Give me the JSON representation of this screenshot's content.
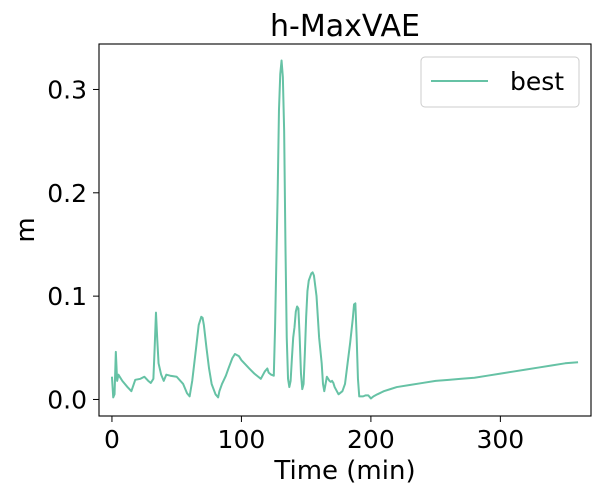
{
  "chart_data": {
    "type": "line",
    "title": "h-MaxVAE",
    "xlabel": "Time (min)",
    "ylabel": "m",
    "xlim": [
      -10,
      370
    ],
    "ylim": [
      -0.016,
      0.344
    ],
    "x_ticks": [
      0,
      100,
      200,
      300
    ],
    "x_tick_labels": [
      "0",
      "100",
      "200",
      "300"
    ],
    "y_ticks": [
      0.0,
      0.1,
      0.2,
      0.3
    ],
    "y_tick_labels": [
      "0.0",
      "0.1",
      "0.2",
      "0.3"
    ],
    "grid": false,
    "legend": "top-right",
    "series": [
      {
        "name": "best",
        "color": "#66c2a5",
        "x": [
          0,
          1,
          2,
          3,
          4,
          5,
          8,
          12,
          15,
          18,
          22,
          25,
          28,
          30,
          32,
          33,
          34,
          35,
          36,
          38,
          40,
          42,
          45,
          50,
          55,
          58,
          60,
          62,
          65,
          67,
          69,
          70,
          71,
          73,
          75,
          77,
          80,
          82,
          83,
          85,
          88,
          90,
          93,
          95,
          98,
          100,
          103,
          106,
          110,
          113,
          115,
          118,
          120,
          121,
          123,
          125,
          126,
          128,
          129,
          130,
          131,
          132,
          133,
          134,
          135,
          136,
          137,
          138,
          139,
          140,
          141,
          142,
          143,
          144,
          145,
          146,
          147,
          148,
          149,
          150,
          151,
          152,
          154,
          155,
          156,
          158,
          160,
          162,
          163,
          164,
          165,
          166,
          167,
          168,
          169,
          170,
          171,
          172,
          175,
          178,
          180,
          182,
          184,
          186,
          187,
          188,
          189,
          190,
          191,
          192,
          194,
          196,
          198,
          200,
          202,
          205,
          210,
          215,
          220,
          230,
          240,
          250,
          260,
          270,
          280,
          290,
          300,
          310,
          320,
          330,
          340,
          350,
          360
        ],
        "y": [
          0.022,
          0.002,
          0.005,
          0.046,
          0.018,
          0.024,
          0.018,
          0.012,
          0.008,
          0.019,
          0.02,
          0.022,
          0.018,
          0.016,
          0.02,
          0.05,
          0.084,
          0.058,
          0.035,
          0.024,
          0.018,
          0.024,
          0.023,
          0.022,
          0.015,
          0.006,
          0.003,
          0.018,
          0.05,
          0.072,
          0.08,
          0.079,
          0.072,
          0.05,
          0.03,
          0.015,
          0.005,
          0.002,
          0.008,
          0.015,
          0.023,
          0.03,
          0.04,
          0.044,
          0.042,
          0.038,
          0.034,
          0.03,
          0.025,
          0.022,
          0.02,
          0.027,
          0.03,
          0.026,
          0.024,
          0.023,
          0.07,
          0.2,
          0.28,
          0.315,
          0.328,
          0.312,
          0.26,
          0.15,
          0.06,
          0.02,
          0.012,
          0.018,
          0.04,
          0.06,
          0.07,
          0.085,
          0.09,
          0.088,
          0.06,
          0.025,
          0.01,
          0.015,
          0.045,
          0.08,
          0.105,
          0.115,
          0.122,
          0.123,
          0.12,
          0.1,
          0.06,
          0.035,
          0.015,
          0.008,
          0.015,
          0.022,
          0.02,
          0.018,
          0.017,
          0.018,
          0.016,
          0.012,
          0.005,
          0.008,
          0.015,
          0.035,
          0.055,
          0.078,
          0.092,
          0.093,
          0.06,
          0.02,
          0.003,
          0.003,
          0.003,
          0.004,
          0.004,
          0.001,
          0.003,
          0.005,
          0.008,
          0.01,
          0.012,
          0.014,
          0.016,
          0.018,
          0.019,
          0.02,
          0.021,
          0.023,
          0.025,
          0.027,
          0.029,
          0.031,
          0.033,
          0.035,
          0.036
        ]
      }
    ]
  }
}
